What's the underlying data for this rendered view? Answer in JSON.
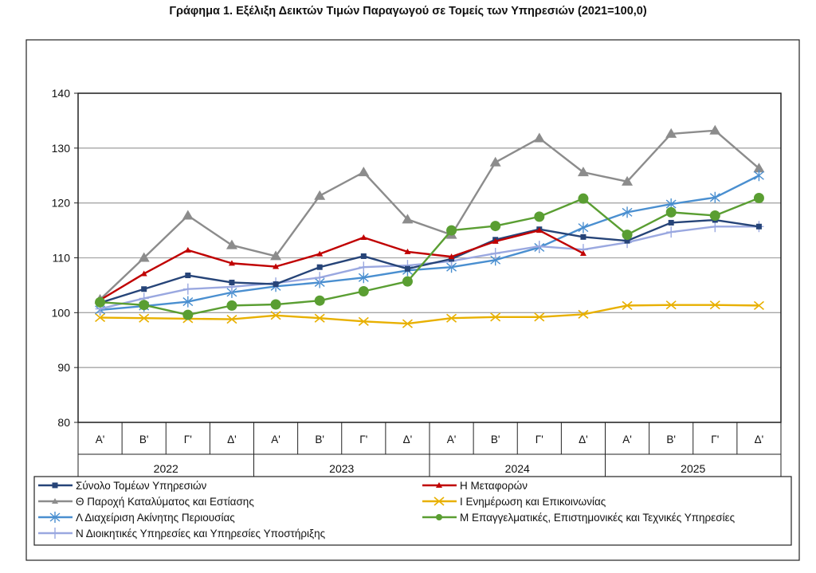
{
  "chart_data": {
    "type": "line",
    "title": "Γράφημα 1. Εξέλιξη Δεικτών Τιμών Παραγωγού σε Τομείς των Υπηρεσιών (2021=100,0)",
    "xlabel": "",
    "ylabel": "",
    "ylim": [
      80,
      140
    ],
    "yticks": [
      "80",
      "90",
      "100",
      "110",
      "120",
      "130",
      "140"
    ],
    "grid": true,
    "legend_position": "bottom",
    "categories": [
      "Α'",
      "Β'",
      "Γ'",
      "Δ'",
      "Α'",
      "Β'",
      "Γ'",
      "Δ'",
      "Α'",
      "Β'",
      "Γ'",
      "Δ'",
      "Α'",
      "Β'",
      "Γ'",
      "Δ'"
    ],
    "years": [
      "2022",
      "2023",
      "2024",
      "2025"
    ],
    "series": [
      {
        "name": "Σύνολο Τομέων Υπηρεσιών",
        "color": "#264478",
        "marker": "square",
        "values": [
          101.8,
          104.3,
          106.8,
          105.5,
          105.2,
          108.3,
          110.3,
          108.0,
          109.8,
          113.3,
          115.2,
          113.8,
          113.1,
          116.4,
          116.9,
          115.7
        ]
      },
      {
        "name": "Η Μεταφορών",
        "color": "#c00000",
        "marker": "triangle-small",
        "values": [
          102.3,
          107.1,
          111.4,
          109.0,
          108.4,
          110.7,
          113.7,
          111.1,
          110.2,
          113.0,
          115.0,
          110.8,
          null,
          null,
          null,
          null
        ]
      },
      {
        "name": "Θ Παροχή Καταλύματος και Εστίασης",
        "color": "#8c8c8c",
        "marker": "triangle",
        "values": [
          102.4,
          110.0,
          117.7,
          112.3,
          110.3,
          121.3,
          125.6,
          117.0,
          114.2,
          127.4,
          131.8,
          125.6,
          123.9,
          132.6,
          133.2,
          126.3
        ]
      },
      {
        "name": "Ι Ενημέρωση και Επικοινωνίας",
        "color": "#e8b000",
        "marker": "x",
        "values": [
          99.1,
          99.0,
          98.9,
          98.8,
          99.5,
          99.0,
          98.4,
          98.0,
          99.0,
          99.2,
          99.2,
          99.7,
          101.3,
          101.4,
          101.4,
          101.3
        ]
      },
      {
        "name": "Λ Διαχείριση Ακίνητης Περιουσίας",
        "color": "#4a8fd0",
        "marker": "star",
        "values": [
          100.5,
          101.2,
          102.0,
          103.7,
          104.8,
          105.5,
          106.4,
          107.7,
          108.3,
          109.6,
          111.9,
          115.5,
          118.3,
          119.8,
          121.0,
          125.0
        ]
      },
      {
        "name": "Μ Επαγγελματικές, Επιστημονικές και Τεχνικές Υπηρεσίες",
        "color": "#5a9e32",
        "marker": "circle",
        "values": [
          101.9,
          101.4,
          99.6,
          101.3,
          101.5,
          102.2,
          103.9,
          105.7,
          115.0,
          115.8,
          117.5,
          120.8,
          114.2,
          118.3,
          117.7,
          120.9
        ]
      },
      {
        "name": "Ν Διοικητικές Υπηρεσίες και Υπηρεσίες Υποστήριξης",
        "color": "#9aa8e0",
        "marker": "plus",
        "values": [
          100.7,
          102.6,
          104.3,
          104.7,
          105.4,
          106.4,
          108.3,
          108.6,
          109.4,
          110.8,
          112.1,
          111.5,
          112.8,
          114.7,
          115.7,
          115.7
        ]
      }
    ]
  }
}
